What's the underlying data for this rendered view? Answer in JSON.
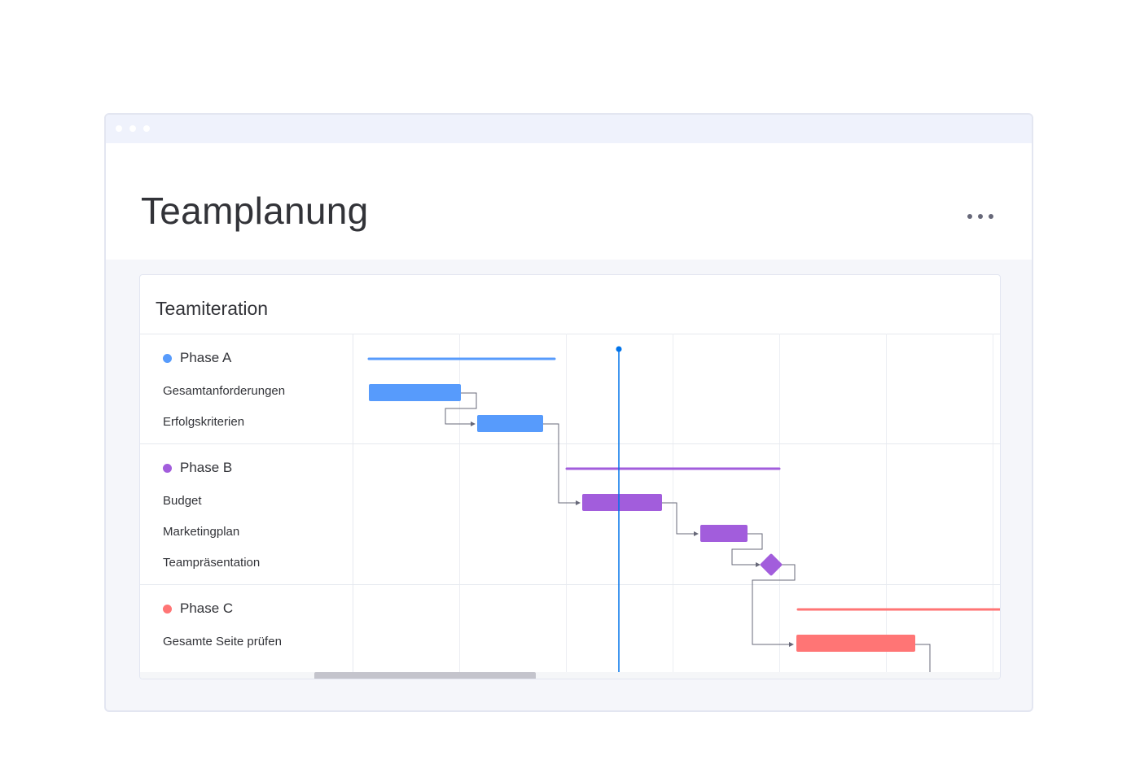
{
  "page": {
    "title": "Teamplanung"
  },
  "board": {
    "title": "Teamiteration",
    "phases": [
      {
        "label": "Phase A",
        "color": "#579bfc",
        "tasks": [
          "Gesamtanforderungen",
          "Erfolgskriterien"
        ]
      },
      {
        "label": "Phase B",
        "color": "#a25ddc",
        "tasks": [
          "Budget",
          "Marketingplan",
          "Teampräsentation"
        ]
      },
      {
        "label": "Phase C",
        "color": "#ff7575",
        "tasks": [
          "Gesamte Seite prüfen"
        ]
      }
    ]
  },
  "colors": {
    "today_marker": "#0073ea",
    "dependency_line": "#676879",
    "window_border": "#e3e6f1"
  },
  "icons": {
    "more": "more-horizontal-icon",
    "milestone": "diamond-icon"
  }
}
